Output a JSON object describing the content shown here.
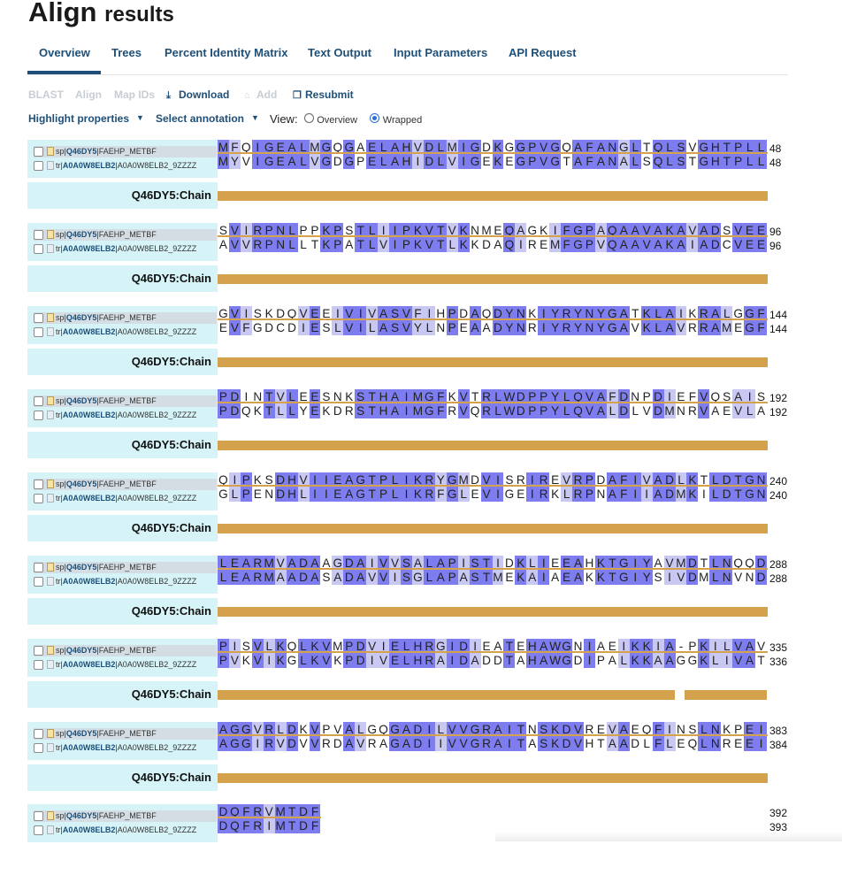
{
  "page": {
    "title_main": "Align",
    "title_sub": "results"
  },
  "tabs": [
    {
      "label": "Overview",
      "active": true
    },
    {
      "label": "Trees"
    },
    {
      "label": "Percent Identity Matrix"
    },
    {
      "label": "Text Output"
    },
    {
      "label": "Input Parameters"
    },
    {
      "label": "API Request"
    }
  ],
  "toolbar": {
    "blast": "BLAST",
    "align": "Align",
    "map_ids": "Map IDs",
    "download": "Download",
    "add": "Add",
    "resubmit": "Resubmit"
  },
  "controls": {
    "highlight": "Highlight properties",
    "annotation": "Select annotation",
    "view_label": "View:",
    "view_overview": "Overview",
    "view_wrapped": "Wrapped",
    "selected_view": "Wrapped"
  },
  "seq_labels": {
    "s1_prefix": "sp|",
    "s1_acc": "Q46DY5",
    "s1_suffix": "|FAEHP_METBF",
    "s2_prefix": "tr|",
    "s2_acc": "A0A0W8ELB2",
    "s2_suffix": "|A0A0W8ELB2_9ZZZZ"
  },
  "chain_label": "Q46DY5:Chain",
  "colors": {
    "identical": "#7d7df0",
    "similar": "#c8c8f2",
    "chain": "#d4a24c",
    "label_bg": "#d6f4f8",
    "link": "#1d4f78"
  },
  "blocks": [
    {
      "s1": "MFQIGEALMGQGAELAHVDLMIGDKGGPVGQAFANGLTQLSVGHTPLL",
      "s2": "MYVIGEALVGDGPELAHIDLVIGEKEGPVGTAFANALSQLSTGHTPLL",
      "n1": "48",
      "n2": "48"
    },
    {
      "s1": "SVIRPNLPPKPSTLIIPKVTVKNMEQAGKIFGPAQAAVAKAVADSVEE",
      "s2": "AVVRPNLLTKPATLVIPKVTLKKDAQIREMFGPVQAAVAKAIADCVEE",
      "n1": "96",
      "n2": "96"
    },
    {
      "s1": "GVISKDQVEEIVIVASVFIHPDAQDYNKIYRYNYGATKLAIKRALGGF",
      "s2": "EVFGDCDIESLVILASVYLNPEAADYNRIYRYNYGAVKLAVRRAMEGF",
      "n1": "144",
      "n2": "144"
    },
    {
      "s1": "PDINTVLEESNKSTHAIMGFKVTRLWDPPYLQVAFDNPDIEFVQSAIS",
      "s2": "PDQKTLLYEKDRSTHAIMGFRVQRLWDPPYLQVALDLVDMNRVAEVLA",
      "n1": "192",
      "n2": "192"
    },
    {
      "s1": "QIPKSDHVIIEAGTPLIKRYGMDVISRIREVRPDAFIVADLKTLDTGN",
      "s2": "GLPENDHLIIEAGTPLIKRFGLEVIGEIRKLRPNAFIIADMKILDTGN",
      "n1": "240",
      "n2": "240"
    },
    {
      "s1": "LEARMVADAAGDAIVVSALAPISTIDKLIEEAHKTGIYAVMDTLNQQD",
      "s2": "LEARMAADASADAVVISGLAPASTMEKAIAEAKKTGIYSIVDMLNVND",
      "n1": "288",
      "n2": "288"
    },
    {
      "s1": "PISVLKQLKVMPDVIELHRGIDIEATEHAWGNIAEIKKIA-PKILVAV",
      "s2": "PVKVIKGLKVKPDIVELHRAIDADDTAHAWGDIPALKKAAGGKLIVAT",
      "n1": "335",
      "n2": "336"
    },
    {
      "s1": "AGGVRLDKVPVALGQGADILVVGRAITNSKDVREVAEQFINSLNKPEI",
      "s2": "AGGIRVDVVRDAVRAGADIIVVGRAITASKDVHTAADLFLEQLNREEI",
      "n1": "383",
      "n2": "384"
    },
    {
      "s1": "DQFRVMTDF",
      "s2": "DQFRIMTDF",
      "n1": "392",
      "n2": "393"
    }
  ]
}
